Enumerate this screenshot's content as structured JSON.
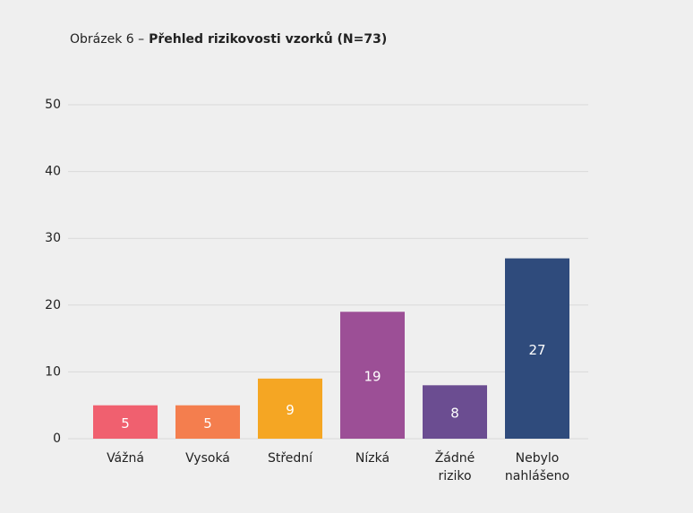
{
  "chart_data": {
    "type": "bar",
    "figure_label": "Obrázek 6 –",
    "title": "Přehled rizikovosti vzorků (N=73)",
    "categories": [
      "Vážná",
      "Vysoká",
      "Střední",
      "Nízká",
      "Žádné riziko",
      "Nebylo nahlášeno"
    ],
    "values": [
      5,
      5,
      9,
      19,
      8,
      27
    ],
    "colors": [
      "#f0606f",
      "#f47e4e",
      "#f5a623",
      "#9c4f96",
      "#6b4d91",
      "#2f4b7c"
    ],
    "ylim": [
      0,
      50
    ],
    "yticks": [
      0,
      10,
      20,
      30,
      40,
      50
    ],
    "grid": true
  }
}
